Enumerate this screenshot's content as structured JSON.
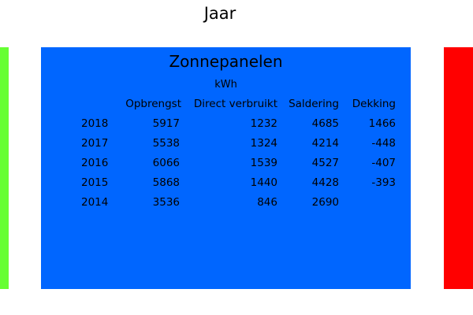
{
  "header": {
    "title": "Jaar"
  },
  "colors": {
    "left_bar": "#66ff33",
    "panel": "#0066ff",
    "right_bar": "#ff0000"
  },
  "panel": {
    "title": "Zonnepanelen",
    "unit": "kWh",
    "columns": [
      "Opbrengst",
      "Direct verbruikt",
      "Saldering",
      "Dekking"
    ],
    "rows": [
      {
        "year": "2018",
        "opbrengst": "5917",
        "direct": "1232",
        "saldering": "4685",
        "dekking": "1466"
      },
      {
        "year": "2017",
        "opbrengst": "5538",
        "direct": "1324",
        "saldering": "4214",
        "dekking": "-448"
      },
      {
        "year": "2016",
        "opbrengst": "6066",
        "direct": "1539",
        "saldering": "4527",
        "dekking": "-407"
      },
      {
        "year": "2015",
        "opbrengst": "5868",
        "direct": "1440",
        "saldering": "4428",
        "dekking": "-393"
      },
      {
        "year": "2014",
        "opbrengst": "3536",
        "direct": "846",
        "saldering": "2690",
        "dekking": ""
      }
    ]
  }
}
